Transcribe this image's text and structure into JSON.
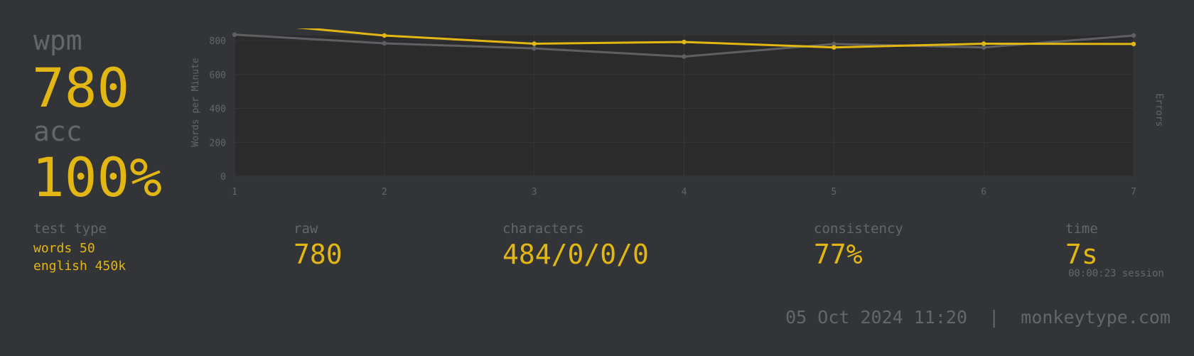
{
  "stats": {
    "wpm_label": "wpm",
    "wpm_value": "780",
    "acc_label": "acc",
    "acc_value": "100%"
  },
  "details": {
    "test_type_label": "test type",
    "test_type_line1": "words 50",
    "test_type_line2": "english 450k",
    "raw_label": "raw",
    "raw_value": "780",
    "characters_label": "characters",
    "characters_value": "484/0/0/0",
    "consistency_label": "consistency",
    "consistency_value": "77%",
    "time_label": "time",
    "time_value": "7s",
    "session_text": "00:00:23 session"
  },
  "footer": {
    "datetime": "05 Oct 2024 11:20",
    "separator": "|",
    "site": "monkeytype.com"
  },
  "colors": {
    "background": "#323437",
    "plot_background": "#2b2b2c",
    "main": "#e2b714",
    "sub": "#646669",
    "raw_line": "#5e6063",
    "grid": "#363739"
  },
  "chart_data": {
    "type": "line",
    "x": [
      1,
      2,
      3,
      4,
      5,
      6,
      7
    ],
    "ylabel": "Words per Minute",
    "y2label": "Errors",
    "ylim": [
      0,
      830
    ],
    "yticks": [
      0,
      200,
      400,
      600,
      800
    ],
    "grid": true,
    "series": [
      {
        "role": "wpm",
        "color": "#e2b714",
        "values": [
          912,
          830,
          782,
          792,
          760,
          782,
          780
        ]
      },
      {
        "role": "raw",
        "color": "#5e6063",
        "values": [
          835,
          784,
          754,
          706,
          780,
          760,
          830
        ]
      }
    ]
  }
}
